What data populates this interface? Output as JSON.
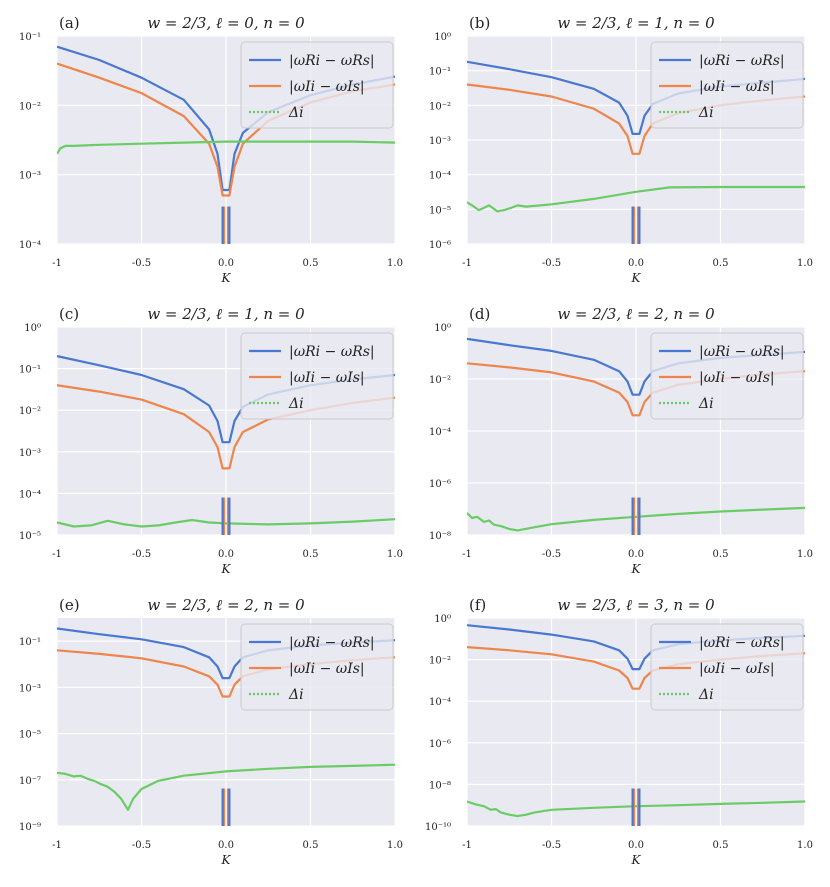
{
  "figure": {
    "background": "#ffffff",
    "axes_background": "#e9e9f1",
    "grid_color": "#ffffff"
  },
  "colors": {
    "real_part": "#4878d0",
    "imag_part": "#ee854a",
    "delta": "#6acc64"
  },
  "legend": {
    "labels": [
      "|ωRi − ωRs|",
      "|ωIi − ωIs|",
      "Δi"
    ]
  },
  "chart_data": [
    {
      "type": "line",
      "panel": "(a)",
      "title": "w = 2/3, ℓ = 0, n = 0",
      "xlabel": "K",
      "xlim": [
        -1,
        1
      ],
      "xticks": [
        -1,
        -0.5,
        0,
        0.5,
        1
      ],
      "xtick_labels": [
        "-1",
        "-0.5",
        "0.0",
        "0.5",
        "1.0"
      ],
      "yscale": "log",
      "ylim_exp": [
        -4,
        -1
      ],
      "yticks_exp": [
        -4,
        -3,
        -2,
        -1
      ],
      "ytick_labels": [
        "10⁻⁴",
        "10⁻³",
        "10⁻²",
        "10⁻¹"
      ],
      "series": [
        {
          "name": "|ωRi − ωRs|",
          "x": [
            -1,
            -0.75,
            -0.5,
            -0.25,
            -0.1,
            -0.05,
            -0.02,
            0.02,
            0.05,
            0.1,
            0.25,
            0.5,
            0.75,
            1
          ],
          "y": [
            0.07,
            0.045,
            0.025,
            0.012,
            0.0045,
            0.002,
            0.0006,
            0.0006,
            0.002,
            0.004,
            0.008,
            0.014,
            0.02,
            0.026
          ]
        },
        {
          "name": "|ωIi − ωIs|",
          "x": [
            -1,
            -0.75,
            -0.5,
            -0.25,
            -0.1,
            -0.05,
            -0.02,
            0.02,
            0.05,
            0.1,
            0.25,
            0.5,
            0.75,
            1
          ],
          "y": [
            0.04,
            0.025,
            0.015,
            0.007,
            0.0028,
            0.0013,
            0.0005,
            0.0005,
            0.0013,
            0.0028,
            0.006,
            0.011,
            0.016,
            0.02
          ]
        },
        {
          "name": "Δi",
          "x": [
            -1,
            -0.98,
            -0.95,
            -0.9,
            -0.75,
            -0.5,
            -0.25,
            0,
            0.25,
            0.5,
            0.75,
            1
          ],
          "y": [
            0.002,
            0.0024,
            0.0026,
            0.0026,
            0.0027,
            0.0028,
            0.0029,
            0.003,
            0.003,
            0.003,
            0.003,
            0.0029
          ]
        }
      ]
    },
    {
      "type": "line",
      "panel": "(b)",
      "title": "w = 2/3, ℓ = 1, n = 0",
      "xlabel": "K",
      "xlim": [
        -1,
        1
      ],
      "xticks": [
        -1,
        -0.5,
        0,
        0.5,
        1
      ],
      "xtick_labels": [
        "-1",
        "-0.5",
        "0.0",
        "0.5",
        "1.0"
      ],
      "yscale": "log",
      "ylim_exp": [
        -6,
        0
      ],
      "yticks_exp": [
        -6,
        -5,
        -4,
        -3,
        -2,
        -1,
        0
      ],
      "ytick_labels": [
        "10⁻⁶",
        "10⁻⁵",
        "10⁻⁴",
        "10⁻³",
        "10⁻²",
        "10⁻¹",
        "10⁰"
      ],
      "series": [
        {
          "name": "|ωRi − ωRs|",
          "x": [
            -1,
            -0.75,
            -0.5,
            -0.25,
            -0.1,
            -0.05,
            -0.02,
            0.02,
            0.05,
            0.1,
            0.25,
            0.5,
            0.75,
            1
          ],
          "y": [
            0.18,
            0.11,
            0.065,
            0.03,
            0.012,
            0.005,
            0.0015,
            0.0015,
            0.005,
            0.011,
            0.022,
            0.035,
            0.045,
            0.058
          ]
        },
        {
          "name": "|ωIi − ωIs|",
          "x": [
            -1,
            -0.75,
            -0.5,
            -0.25,
            -0.1,
            -0.05,
            -0.02,
            0.02,
            0.05,
            0.1,
            0.25,
            0.5,
            0.75,
            1
          ],
          "y": [
            0.04,
            0.028,
            0.018,
            0.008,
            0.003,
            0.0013,
            0.0004,
            0.0004,
            0.0013,
            0.003,
            0.006,
            0.01,
            0.014,
            0.018
          ]
        },
        {
          "name": "Δi",
          "x": [
            -1,
            -0.97,
            -0.93,
            -0.9,
            -0.87,
            -0.82,
            -0.78,
            -0.74,
            -0.7,
            -0.65,
            -0.5,
            -0.25,
            0,
            0.2,
            0.5,
            0.75,
            1
          ],
          "y": [
            1.6e-05,
            1.3e-05,
            9.5e-06,
            1.1e-05,
            1.3e-05,
            8.8e-06,
            9.5e-06,
            1.1e-05,
            1.3e-05,
            1.2e-05,
            1.4e-05,
            2e-05,
            3.2e-05,
            4.3e-05,
            4.4e-05,
            4.4e-05,
            4.4e-05
          ]
        }
      ]
    },
    {
      "type": "line",
      "panel": "(c)",
      "title": "w = 2/3, ℓ = 1, n = 0",
      "xlabel": "K",
      "xlim": [
        -1,
        1
      ],
      "xticks": [
        -1,
        -0.5,
        0,
        0.5,
        1
      ],
      "xtick_labels": [
        "-1",
        "-0.5",
        "0.0",
        "0.5",
        "1.0"
      ],
      "yscale": "log",
      "ylim_exp": [
        -5,
        0
      ],
      "yticks_exp": [
        -5,
        -4,
        -3,
        -2,
        -1,
        0
      ],
      "ytick_labels": [
        "10⁻⁵",
        "10⁻⁴",
        "10⁻³",
        "10⁻²",
        "10⁻¹",
        "10⁰"
      ],
      "series": [
        {
          "name": "|ωRi − ωRs|",
          "x": [
            -1,
            -0.75,
            -0.5,
            -0.25,
            -0.1,
            -0.05,
            -0.02,
            0.02,
            0.05,
            0.1,
            0.25,
            0.5,
            0.75,
            1
          ],
          "y": [
            0.2,
            0.12,
            0.07,
            0.032,
            0.013,
            0.0055,
            0.0017,
            0.0017,
            0.0055,
            0.012,
            0.024,
            0.04,
            0.055,
            0.07
          ]
        },
        {
          "name": "|ωIi − ωIs|",
          "x": [
            -1,
            -0.75,
            -0.5,
            -0.25,
            -0.1,
            -0.05,
            -0.02,
            0.02,
            0.05,
            0.1,
            0.25,
            0.5,
            0.75,
            1
          ],
          "y": [
            0.04,
            0.028,
            0.018,
            0.008,
            0.003,
            0.0013,
            0.0004,
            0.0004,
            0.0013,
            0.003,
            0.006,
            0.01,
            0.015,
            0.02
          ]
        },
        {
          "name": "Δi",
          "x": [
            -1,
            -0.9,
            -0.8,
            -0.7,
            -0.6,
            -0.5,
            -0.4,
            -0.3,
            -0.2,
            -0.1,
            0,
            0.25,
            0.5,
            0.75,
            1
          ],
          "y": [
            2e-05,
            1.6e-05,
            1.7e-05,
            2.2e-05,
            1.8e-05,
            1.6e-05,
            1.7e-05,
            2e-05,
            2.3e-05,
            2e-05,
            1.9e-05,
            1.8e-05,
            1.9e-05,
            2.1e-05,
            2.4e-05
          ]
        }
      ]
    },
    {
      "type": "line",
      "panel": "(d)",
      "title": "w = 2/3, ℓ = 2, n = 0",
      "xlabel": "K",
      "xlim": [
        -1,
        1
      ],
      "xticks": [
        -1,
        -0.5,
        0,
        0.5,
        1
      ],
      "xtick_labels": [
        "-1",
        "-0.5",
        "0.0",
        "0.5",
        "1.0"
      ],
      "yscale": "log",
      "ylim_exp": [
        -8,
        0
      ],
      "yticks_exp": [
        -8,
        -6,
        -4,
        -2,
        0
      ],
      "ytick_labels": [
        "10⁻⁸",
        "10⁻⁶",
        "10⁻⁴",
        "10⁻²",
        "10⁰"
      ],
      "series": [
        {
          "name": "|ωRi − ωRs|",
          "x": [
            -1,
            -0.75,
            -0.5,
            -0.25,
            -0.1,
            -0.05,
            -0.02,
            0.02,
            0.05,
            0.1,
            0.25,
            0.5,
            0.75,
            1
          ],
          "y": [
            0.35,
            0.2,
            0.12,
            0.055,
            0.02,
            0.008,
            0.0025,
            0.0025,
            0.008,
            0.02,
            0.04,
            0.065,
            0.085,
            0.11
          ]
        },
        {
          "name": "|ωIi − ωIs|",
          "x": [
            -1,
            -0.75,
            -0.5,
            -0.25,
            -0.1,
            -0.05,
            -0.02,
            0.02,
            0.05,
            0.1,
            0.25,
            0.5,
            0.75,
            1
          ],
          "y": [
            0.04,
            0.028,
            0.018,
            0.008,
            0.003,
            0.0013,
            0.0004,
            0.0004,
            0.0013,
            0.003,
            0.006,
            0.01,
            0.015,
            0.02
          ]
        },
        {
          "name": "Δi",
          "x": [
            -1,
            -0.97,
            -0.94,
            -0.9,
            -0.87,
            -0.84,
            -0.8,
            -0.75,
            -0.7,
            -0.6,
            -0.5,
            -0.25,
            0,
            0.25,
            0.5,
            0.75,
            1
          ],
          "y": [
            7e-08,
            4.5e-08,
            5e-08,
            3.2e-08,
            3.6e-08,
            2.5e-08,
            2.2e-08,
            1.7e-08,
            1.5e-08,
            2e-08,
            2.6e-08,
            3.8e-08,
            5e-08,
            6.5e-08,
            8e-08,
            9.5e-08,
            1.1e-07
          ]
        }
      ]
    },
    {
      "type": "line",
      "panel": "(e)",
      "title": "w = 2/3, ℓ = 2, n = 0",
      "xlabel": "K",
      "xlim": [
        -1,
        1
      ],
      "xticks": [
        -1,
        -0.5,
        0,
        0.5,
        1
      ],
      "xtick_labels": [
        "-1",
        "-0.5",
        "0.0",
        "0.5",
        "1.0"
      ],
      "yscale": "log",
      "ylim_exp": [
        -9,
        0
      ],
      "yticks_exp": [
        -9,
        -7,
        -5,
        -3,
        -1
      ],
      "ytick_labels": [
        "10⁻⁹",
        "10⁻⁷",
        "10⁻⁵",
        "10⁻³",
        "10⁻¹"
      ],
      "series": [
        {
          "name": "|ωRi − ωRs|",
          "x": [
            -1,
            -0.75,
            -0.5,
            -0.25,
            -0.1,
            -0.05,
            -0.02,
            0.02,
            0.05,
            0.1,
            0.25,
            0.5,
            0.75,
            1
          ],
          "y": [
            0.35,
            0.2,
            0.12,
            0.055,
            0.02,
            0.008,
            0.0025,
            0.0025,
            0.008,
            0.02,
            0.04,
            0.065,
            0.085,
            0.11
          ]
        },
        {
          "name": "|ωIi − ωIs|",
          "x": [
            -1,
            -0.75,
            -0.5,
            -0.25,
            -0.1,
            -0.05,
            -0.02,
            0.02,
            0.05,
            0.1,
            0.25,
            0.5,
            0.75,
            1
          ],
          "y": [
            0.04,
            0.028,
            0.018,
            0.008,
            0.003,
            0.0013,
            0.0004,
            0.0004,
            0.0013,
            0.003,
            0.006,
            0.01,
            0.015,
            0.02
          ]
        },
        {
          "name": "Δi",
          "x": [
            -1,
            -0.95,
            -0.9,
            -0.86,
            -0.82,
            -0.78,
            -0.74,
            -0.7,
            -0.66,
            -0.62,
            -0.58,
            -0.55,
            -0.5,
            -0.4,
            -0.25,
            0,
            0.25,
            0.5,
            0.75,
            1
          ],
          "y": [
            2e-07,
            1.8e-07,
            1.4e-07,
            1.5e-07,
            1.1e-07,
            9e-08,
            6.5e-08,
            5e-08,
            3e-08,
            1.5e-08,
            5e-09,
            1.5e-08,
            4e-08,
            9e-08,
            1.5e-07,
            2.3e-07,
            3e-07,
            3.6e-07,
            4e-07,
            4.5e-07
          ]
        }
      ]
    },
    {
      "type": "line",
      "panel": "(f)",
      "title": "w = 2/3, ℓ = 3, n = 0",
      "xlabel": "K",
      "xlim": [
        -1,
        1
      ],
      "xticks": [
        -1,
        -0.5,
        0,
        0.5,
        1
      ],
      "xtick_labels": [
        "-1",
        "-0.5",
        "0.0",
        "0.5",
        "1.0"
      ],
      "yscale": "log",
      "ylim_exp": [
        -10,
        0
      ],
      "yticks_exp": [
        -10,
        -8,
        -6,
        -4,
        -2,
        0
      ],
      "ytick_labels": [
        "10⁻¹⁰",
        "10⁻⁸",
        "10⁻⁶",
        "10⁻⁴",
        "10⁻²",
        "10⁰"
      ],
      "series": [
        {
          "name": "|ωRi − ωRs|",
          "x": [
            -1,
            -0.75,
            -0.5,
            -0.25,
            -0.1,
            -0.05,
            -0.02,
            0.02,
            0.05,
            0.1,
            0.25,
            0.5,
            0.75,
            1
          ],
          "y": [
            0.45,
            0.28,
            0.16,
            0.075,
            0.028,
            0.011,
            0.0035,
            0.0035,
            0.011,
            0.028,
            0.055,
            0.085,
            0.11,
            0.14
          ]
        },
        {
          "name": "|ωIi − ωIs|",
          "x": [
            -1,
            -0.75,
            -0.5,
            -0.25,
            -0.1,
            -0.05,
            -0.02,
            0.02,
            0.05,
            0.1,
            0.25,
            0.5,
            0.75,
            1
          ],
          "y": [
            0.04,
            0.028,
            0.018,
            0.008,
            0.003,
            0.0013,
            0.0004,
            0.0004,
            0.0013,
            0.003,
            0.006,
            0.01,
            0.015,
            0.02
          ]
        },
        {
          "name": "Δi",
          "x": [
            -1,
            -0.95,
            -0.9,
            -0.86,
            -0.83,
            -0.8,
            -0.75,
            -0.7,
            -0.65,
            -0.6,
            -0.5,
            -0.25,
            0,
            0.25,
            0.5,
            0.75,
            1
          ],
          "y": [
            1.5e-09,
            1.1e-09,
            9e-10,
            6e-10,
            6.5e-10,
            4.5e-10,
            3.5e-10,
            3e-10,
            3.5e-10,
            4.5e-10,
            6e-10,
            7.5e-10,
            9e-10,
            1e-09,
            1.15e-09,
            1.3e-09,
            1.5e-09
          ]
        }
      ]
    }
  ]
}
